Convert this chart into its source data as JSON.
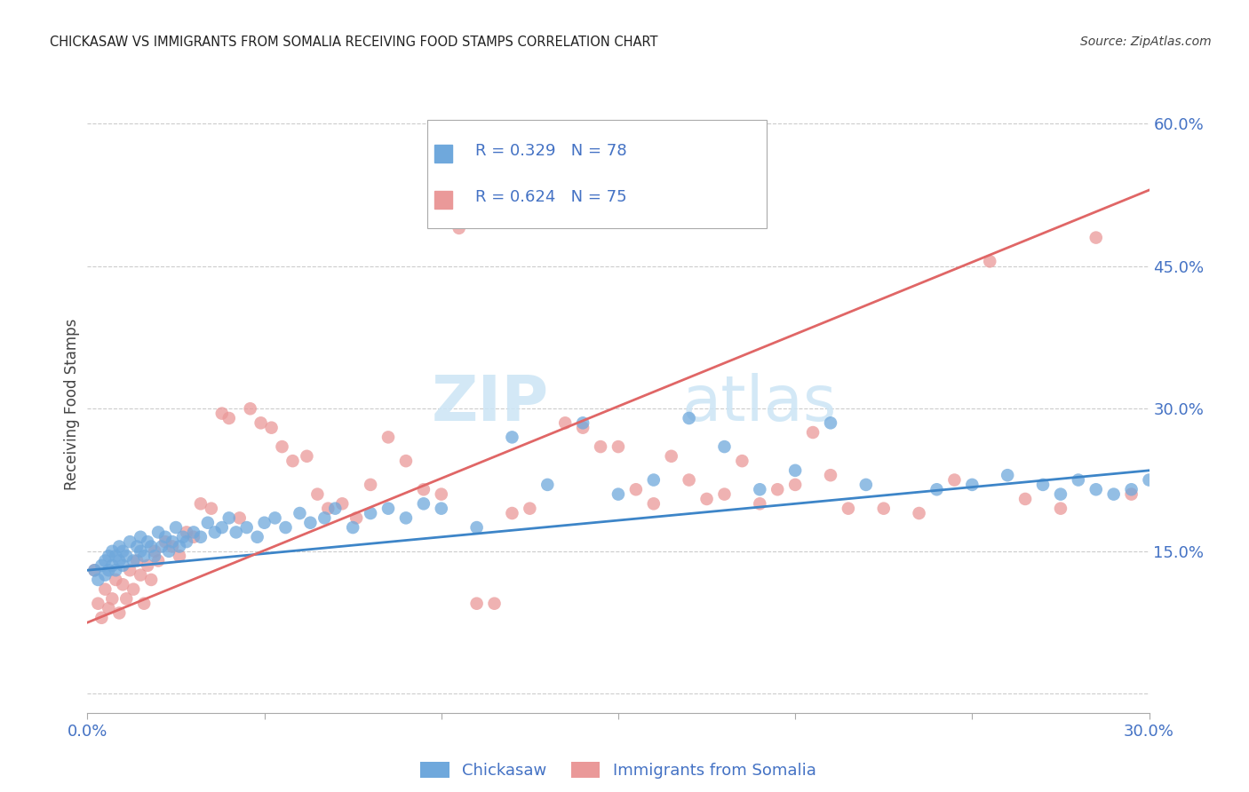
{
  "title": "CHICKASAW VS IMMIGRANTS FROM SOMALIA RECEIVING FOOD STAMPS CORRELATION CHART",
  "source": "Source: ZipAtlas.com",
  "ylabel": "Receiving Food Stamps",
  "yticks": [
    0.0,
    0.15,
    0.3,
    0.45,
    0.6
  ],
  "ytick_labels": [
    "",
    "15.0%",
    "30.0%",
    "45.0%",
    "60.0%"
  ],
  "xticks": [
    0.0,
    0.05,
    0.1,
    0.15,
    0.2,
    0.25,
    0.3
  ],
  "xlim": [
    0.0,
    0.3
  ],
  "ylim": [
    -0.02,
    0.63
  ],
  "chickasaw_R": 0.329,
  "chickasaw_N": 78,
  "somalia_R": 0.624,
  "somalia_N": 75,
  "chickasaw_color": "#6fa8dc",
  "somalia_color": "#ea9999",
  "chickasaw_line_color": "#3d85c8",
  "somalia_line_color": "#e06666",
  "legend_label1": "Chickasaw",
  "legend_label2": "Immigrants from Somalia",
  "watermark_zip": "ZIP",
  "watermark_atlas": "atlas",
  "tick_label_color": "#4472c4",
  "chickasaw_line_x0": 0.0,
  "chickasaw_line_y0": 0.13,
  "chickasaw_line_x1": 0.3,
  "chickasaw_line_y1": 0.235,
  "somalia_line_x0": 0.0,
  "somalia_line_y0": 0.075,
  "somalia_line_x1": 0.3,
  "somalia_line_y1": 0.53,
  "chickasaw_x": [
    0.002,
    0.003,
    0.004,
    0.005,
    0.005,
    0.006,
    0.006,
    0.007,
    0.007,
    0.008,
    0.008,
    0.009,
    0.009,
    0.01,
    0.01,
    0.011,
    0.012,
    0.013,
    0.014,
    0.015,
    0.015,
    0.016,
    0.017,
    0.018,
    0.019,
    0.02,
    0.021,
    0.022,
    0.023,
    0.024,
    0.025,
    0.026,
    0.027,
    0.028,
    0.03,
    0.032,
    0.034,
    0.036,
    0.038,
    0.04,
    0.042,
    0.045,
    0.048,
    0.05,
    0.053,
    0.056,
    0.06,
    0.063,
    0.067,
    0.07,
    0.075,
    0.08,
    0.085,
    0.09,
    0.095,
    0.1,
    0.11,
    0.12,
    0.13,
    0.14,
    0.15,
    0.16,
    0.17,
    0.18,
    0.19,
    0.2,
    0.21,
    0.22,
    0.24,
    0.25,
    0.26,
    0.27,
    0.275,
    0.28,
    0.285,
    0.29,
    0.295,
    0.3
  ],
  "chickasaw_y": [
    0.13,
    0.12,
    0.135,
    0.125,
    0.14,
    0.13,
    0.145,
    0.135,
    0.15,
    0.13,
    0.145,
    0.14,
    0.155,
    0.135,
    0.15,
    0.145,
    0.16,
    0.14,
    0.155,
    0.15,
    0.165,
    0.145,
    0.16,
    0.155,
    0.145,
    0.17,
    0.155,
    0.165,
    0.15,
    0.16,
    0.175,
    0.155,
    0.165,
    0.16,
    0.17,
    0.165,
    0.18,
    0.17,
    0.175,
    0.185,
    0.17,
    0.175,
    0.165,
    0.18,
    0.185,
    0.175,
    0.19,
    0.18,
    0.185,
    0.195,
    0.175,
    0.19,
    0.195,
    0.185,
    0.2,
    0.195,
    0.175,
    0.27,
    0.22,
    0.285,
    0.21,
    0.225,
    0.29,
    0.26,
    0.215,
    0.235,
    0.285,
    0.22,
    0.215,
    0.22,
    0.23,
    0.22,
    0.21,
    0.225,
    0.215,
    0.21,
    0.215,
    0.225
  ],
  "somalia_x": [
    0.002,
    0.003,
    0.004,
    0.005,
    0.006,
    0.007,
    0.008,
    0.009,
    0.01,
    0.011,
    0.012,
    0.013,
    0.014,
    0.015,
    0.016,
    0.017,
    0.018,
    0.019,
    0.02,
    0.022,
    0.024,
    0.026,
    0.028,
    0.03,
    0.032,
    0.035,
    0.038,
    0.04,
    0.043,
    0.046,
    0.049,
    0.052,
    0.055,
    0.058,
    0.062,
    0.065,
    0.068,
    0.072,
    0.076,
    0.08,
    0.085,
    0.09,
    0.095,
    0.1,
    0.105,
    0.11,
    0.115,
    0.12,
    0.125,
    0.13,
    0.135,
    0.14,
    0.145,
    0.15,
    0.155,
    0.16,
    0.165,
    0.17,
    0.175,
    0.18,
    0.185,
    0.19,
    0.195,
    0.2,
    0.205,
    0.21,
    0.215,
    0.225,
    0.235,
    0.245,
    0.255,
    0.265,
    0.275,
    0.285,
    0.295
  ],
  "somalia_y": [
    0.13,
    0.095,
    0.08,
    0.11,
    0.09,
    0.1,
    0.12,
    0.085,
    0.115,
    0.1,
    0.13,
    0.11,
    0.14,
    0.125,
    0.095,
    0.135,
    0.12,
    0.15,
    0.14,
    0.16,
    0.155,
    0.145,
    0.17,
    0.165,
    0.2,
    0.195,
    0.295,
    0.29,
    0.185,
    0.3,
    0.285,
    0.28,
    0.26,
    0.245,
    0.25,
    0.21,
    0.195,
    0.2,
    0.185,
    0.22,
    0.27,
    0.245,
    0.215,
    0.21,
    0.49,
    0.095,
    0.095,
    0.19,
    0.195,
    0.505,
    0.285,
    0.28,
    0.26,
    0.26,
    0.215,
    0.2,
    0.25,
    0.225,
    0.205,
    0.21,
    0.245,
    0.2,
    0.215,
    0.22,
    0.275,
    0.23,
    0.195,
    0.195,
    0.19,
    0.225,
    0.455,
    0.205,
    0.195,
    0.48,
    0.21
  ]
}
